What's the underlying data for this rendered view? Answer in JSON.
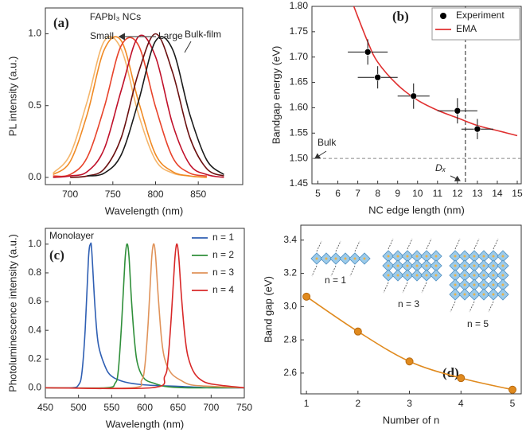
{
  "chart_data": [
    {
      "type": "line",
      "panel_label": "(a)",
      "x": [
        680,
        700,
        720,
        740,
        760,
        780,
        800,
        820,
        840,
        860,
        880
      ],
      "series": [
        {
          "color": "#f5b66b",
          "values": [
            0.03,
            0.16,
            0.53,
            0.95,
            0.89,
            0.44,
            0.12,
            0.03,
            0.01,
            null,
            null
          ]
        },
        {
          "color": "#f08a24",
          "values": [
            0.02,
            0.11,
            0.44,
            0.89,
            0.95,
            0.53,
            0.16,
            0.04,
            0.01,
            0.0,
            null
          ]
        },
        {
          "color": "#e8432b",
          "values": [
            0.01,
            0.02,
            0.14,
            0.49,
            0.92,
            0.92,
            0.49,
            0.14,
            0.03,
            0.01,
            null
          ]
        },
        {
          "color": "#c0102a",
          "values": [
            0.0,
            0.01,
            0.04,
            0.2,
            0.61,
            0.98,
            0.84,
            0.37,
            0.09,
            0.02,
            0.0
          ]
        },
        {
          "color": "#6b1010",
          "values": [
            null,
            0.0,
            0.01,
            0.06,
            0.28,
            0.73,
            1.0,
            0.73,
            0.28,
            0.06,
            0.01
          ]
        },
        {
          "color": "#1a1a1a",
          "values": [
            null,
            null,
            0.01,
            0.03,
            0.16,
            0.53,
            0.95,
            0.89,
            0.44,
            0.12,
            0.02
          ]
        }
      ],
      "xlim": [
        671,
        902
      ],
      "ylim": [
        -0.05,
        1.18
      ],
      "xticks": [
        700,
        750,
        800,
        850
      ],
      "yticks": [
        {
          "value": 0,
          "label": "0.0"
        },
        0.5,
        {
          "value": 1,
          "label": "1.0"
        }
      ],
      "xlabel": "Wavelength (nm)",
      "ylabel": "PL intensity (a.u.)",
      "annotations": {
        "title": "FAPbI₃ NCs",
        "small": "Small",
        "large": "Large",
        "bulk": "Bulk-film"
      }
    },
    {
      "type": "scatter",
      "panel_label": "(b)",
      "series": [
        {
          "name": "Experiment",
          "color": "#000000",
          "x": [
            7.5,
            8.0,
            9.8,
            12.0,
            13.0
          ],
          "values": [
            1.71,
            1.66,
            1.623,
            1.594,
            1.558
          ],
          "xerr": [
            1.0,
            1.0,
            0.8,
            1.0,
            0.8
          ],
          "yerr": [
            0.025,
            0.022,
            0.025,
            0.025,
            0.02
          ]
        },
        {
          "name": "EMA",
          "type": "line",
          "color": "#e03030",
          "x": [
            6.8,
            7.5,
            8,
            9,
            10,
            11,
            12,
            13,
            14,
            15
          ],
          "values": [
            1.8,
            1.73,
            1.69,
            1.645,
            1.615,
            1.595,
            1.58,
            1.565,
            1.555,
            1.545
          ]
        }
      ],
      "xlim": [
        4.7,
        15.2
      ],
      "ylim": [
        1.45,
        1.8
      ],
      "xticks": [
        5,
        6,
        7,
        8,
        9,
        10,
        11,
        12,
        13,
        14,
        15
      ],
      "yticks": [
        1.45,
        {
          "value": 1.5,
          "label": "1.50"
        },
        1.55,
        {
          "value": 1.6,
          "label": "1.60"
        },
        1.65,
        {
          "value": 1.7,
          "label": "1.70"
        },
        1.75,
        {
          "value": 1.8,
          "label": "1.80"
        }
      ],
      "hline": 1.5,
      "vline": 12.4,
      "legend": "top-right",
      "xlabel": "NC edge length (nm)",
      "ylabel": "Bandgap energy (eV)",
      "annotations": {
        "bulk": "Bulk",
        "dx": "Dₓ"
      }
    },
    {
      "type": "line",
      "panel_label": "(c)",
      "series": [
        {
          "name": "n = 1",
          "color": "#2f5fb3",
          "x": [
            450,
            490,
            500,
            505,
            510,
            515,
            518,
            520,
            525,
            530,
            540,
            550,
            570,
            600,
            650,
            700,
            750
          ],
          "values": [
            0,
            0,
            0.02,
            0.1,
            0.4,
            0.9,
            1.0,
            0.95,
            0.55,
            0.3,
            0.15,
            0.08,
            0.04,
            0.02,
            0.01,
            0,
            0
          ]
        },
        {
          "name": "n = 2",
          "color": "#2f8f3a",
          "x": [
            450,
            540,
            555,
            560,
            565,
            570,
            573,
            576,
            580,
            585,
            590,
            600,
            615,
            630,
            660,
            700,
            750
          ],
          "values": [
            0,
            0,
            0.03,
            0.12,
            0.45,
            0.88,
            1.0,
            0.92,
            0.6,
            0.3,
            0.15,
            0.06,
            0.03,
            0.01,
            0,
            0,
            0
          ]
        },
        {
          "name": "n = 3",
          "color": "#e0935a",
          "x": [
            450,
            580,
            595,
            600,
            605,
            610,
            613,
            616,
            620,
            625,
            630,
            640,
            655,
            670,
            700,
            750
          ],
          "values": [
            0,
            0,
            0.05,
            0.15,
            0.45,
            0.88,
            1.0,
            0.93,
            0.65,
            0.35,
            0.2,
            0.1,
            0.05,
            0.02,
            0.01,
            0
          ]
        },
        {
          "name": "n = 4",
          "color": "#d82828",
          "x": [
            450,
            610,
            630,
            635,
            640,
            645,
            648,
            651,
            655,
            660,
            665,
            675,
            690,
            710,
            750
          ],
          "values": [
            0,
            0,
            0.08,
            0.2,
            0.5,
            0.88,
            1.0,
            0.92,
            0.65,
            0.38,
            0.22,
            0.1,
            0.04,
            0.02,
            0
          ]
        }
      ],
      "xlim": [
        450,
        750
      ],
      "ylim": [
        -0.07,
        1.11
      ],
      "xticks": [
        450,
        500,
        550,
        600,
        650,
        700,
        750
      ],
      "yticks": [
        {
          "value": 0,
          "label": "0.0"
        },
        0.2,
        0.4,
        0.6,
        0.8,
        {
          "value": 1,
          "label": "1.0"
        }
      ],
      "legend": "top-right",
      "xlabel": "Wavelength (nm)",
      "ylabel": "Photoluminescence intensity (a.u.)",
      "annotations": {
        "monolayer": "Monolayer"
      }
    },
    {
      "type": "line",
      "panel_label": "(d)",
      "markers": true,
      "x": [
        1,
        2,
        3,
        4,
        5
      ],
      "series": [
        {
          "color": "#e08a1e",
          "values": [
            3.06,
            2.85,
            2.67,
            2.57,
            2.5
          ]
        }
      ],
      "xlim": [
        0.89,
        5.17
      ],
      "ylim": [
        2.475,
        3.49
      ],
      "xticks": [
        1,
        2,
        3,
        4,
        5
      ],
      "yticks": [
        2.6,
        2.8,
        {
          "value": 3,
          "label": "3.0"
        },
        3.2,
        3.4
      ],
      "xlabel": "Number of n",
      "ylabel": "Band gap (eV)",
      "annotations": {
        "n1": "n = 1",
        "n3": "n = 3",
        "n5": "n = 5"
      }
    }
  ]
}
